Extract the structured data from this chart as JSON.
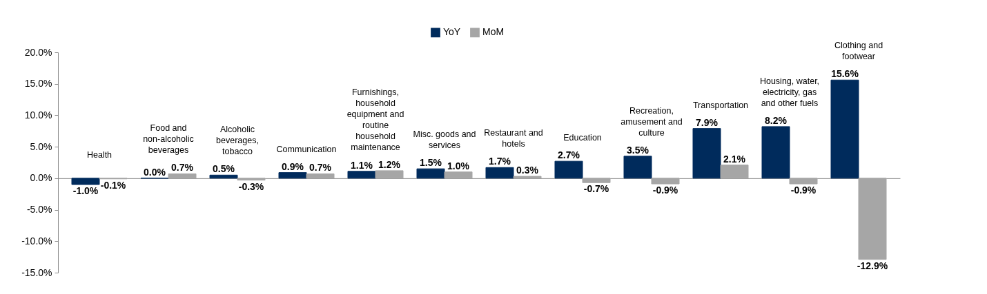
{
  "chart_data": {
    "type": "bar",
    "categories": [
      "Health",
      "Food and non-alcoholic beverages",
      "Alcoholic beverages, tobacco",
      "Communication",
      "Furnishings, household equipment and routine household maintenance",
      "Misc. goods and services",
      "Restaurant and hotels",
      "Education",
      "Recreation, amusement and culture",
      "Transportation",
      "Housing, water, electricity, gas and other fuels",
      "Clothing and footwear"
    ],
    "series": [
      {
        "name": "YoY",
        "color": "#002b5c",
        "values": [
          -1.0,
          0.0,
          0.5,
          0.9,
          1.1,
          1.5,
          1.7,
          2.7,
          3.5,
          7.9,
          8.2,
          15.6
        ],
        "value_labels": [
          "-1.0%",
          "0.0%",
          "0.5%",
          "0.9%",
          "1.1%",
          "1.5%",
          "1.7%",
          "2.7%",
          "3.5%",
          "7.9%",
          "8.2%",
          "15.6%"
        ]
      },
      {
        "name": "MoM",
        "color": "#a6a6a6",
        "values": [
          -0.1,
          0.7,
          -0.3,
          0.7,
          1.2,
          1.0,
          0.3,
          -0.7,
          -0.9,
          2.1,
          -0.9,
          -12.9
        ],
        "value_labels": [
          "-0.1%",
          "0.7%",
          "-0.3%",
          "0.7%",
          "1.2%",
          "1.0%",
          "0.3%",
          "-0.7%",
          "-0.9%",
          "2.1%",
          "-0.9%",
          "-12.9%"
        ]
      }
    ],
    "ylim": [
      -15,
      20
    ],
    "yticks": [
      {
        "value": -15,
        "label": "-15.0%"
      },
      {
        "value": -10,
        "label": "-10.0%"
      },
      {
        "value": -5,
        "label": "-5.0%"
      },
      {
        "value": 0,
        "label": "0.0%"
      },
      {
        "value": 5,
        "label": "5.0%"
      },
      {
        "value": 10,
        "label": "10.0%"
      },
      {
        "value": 15,
        "label": "15.0%"
      },
      {
        "value": 20,
        "label": "20.0%"
      }
    ],
    "grid": false,
    "legend": "top"
  }
}
